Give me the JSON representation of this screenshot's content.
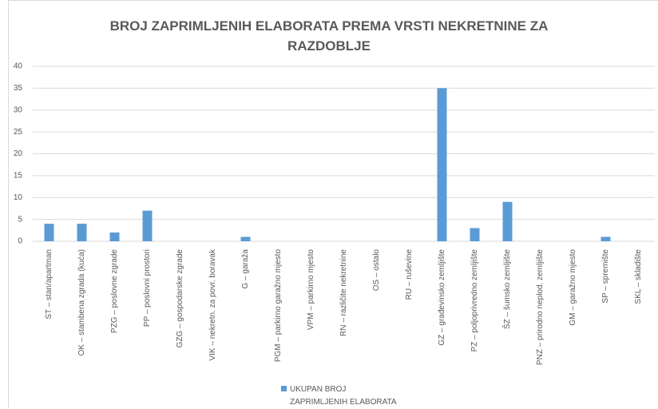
{
  "chart_data": {
    "type": "bar",
    "title": "BROJ ZAPRIMLJENIH ELABORATA PREMA VRSTI NEKRETNINE ZA RAZDOBLJE",
    "categories": [
      "ST – stan/apartman",
      "OK – stambena zgrada (kuća)",
      "PZG – poslovne zgrade",
      "PP – poslovni prostori",
      "GZG – gospodarske zgrade",
      "VIK – nekretn. za povr. boravak",
      "G – garaža",
      "PGM – parkirno garažno mjesto",
      "VPM – parkirno mjesto",
      "RN – različite nekretnine",
      "OS – ostalo",
      "RU – ruševine",
      "GZ – građevinsko zemljište",
      "PZ – poljoprivredno zemljište",
      "ŠZ – šumsko zemljište",
      "PNZ – prirodno neplod. zemljište",
      "GM – garažno mjesto",
      "SP – spremište",
      "SKL – skladište"
    ],
    "series": [
      {
        "name": "UKUPAN BROJ ZAPRIMLJENIH ELABORATA",
        "color": "#5b9bd5",
        "values": [
          4,
          4,
          2,
          7,
          0,
          0,
          1,
          0,
          0,
          0,
          0,
          0,
          35,
          3,
          9,
          0,
          0,
          1,
          0
        ]
      }
    ],
    "ylim": [
      0,
      40
    ],
    "yticks": [
      0,
      5,
      10,
      15,
      20,
      25,
      30,
      35,
      40
    ],
    "grid": true,
    "legend": "bottom"
  }
}
